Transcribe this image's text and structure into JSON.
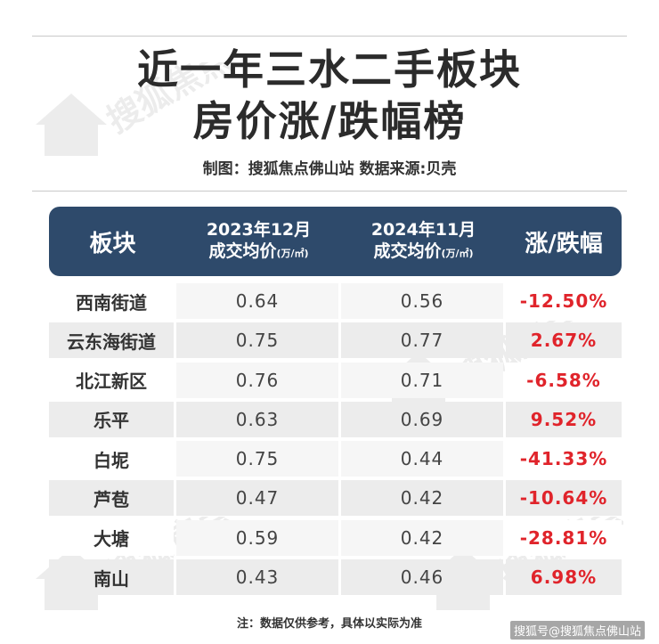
{
  "header": {
    "title_line1": "近一年三水二手板块",
    "title_line2": "房价涨/跌幅榜",
    "credit": "制图：搜狐焦点佛山站  数据来源:贝壳"
  },
  "table": {
    "columns": {
      "c1": "板块",
      "c2_line1": "2023年12月",
      "c2_line2": "成交均价",
      "c3_line1": "2024年11月",
      "c3_line2": "成交均价",
      "unit": "(万/㎡)",
      "c4": "涨/跌幅"
    },
    "rows": [
      {
        "name": "西南街道",
        "price_2023_12": "0.64",
        "price_2024_11": "0.56",
        "change": "-12.50%"
      },
      {
        "name": "云东海街道",
        "price_2023_12": "0.75",
        "price_2024_11": "0.77",
        "change": "2.67%"
      },
      {
        "name": "北江新区",
        "price_2023_12": "0.76",
        "price_2024_11": "0.71",
        "change": "-6.58%"
      },
      {
        "name": "乐平",
        "price_2023_12": "0.63",
        "price_2024_11": "0.69",
        "change": "9.52%"
      },
      {
        "name": "白坭",
        "price_2023_12": "0.75",
        "price_2024_11": "0.44",
        "change": "-41.33%"
      },
      {
        "name": "芦苞",
        "price_2023_12": "0.47",
        "price_2024_11": "0.42",
        "change": "-10.64%"
      },
      {
        "name": "大塘",
        "price_2023_12": "0.59",
        "price_2024_11": "0.42",
        "change": "-28.81%"
      },
      {
        "name": "南山",
        "price_2023_12": "0.43",
        "price_2024_11": "0.46",
        "change": "6.98%"
      }
    ]
  },
  "footer": {
    "note": "注：数据仅供参考，具体以实际为准",
    "source_label": "搜狐号@搜狐焦点佛山站"
  },
  "watermark": {
    "text": "搜狐焦点",
    "sub": "让买房更简单"
  },
  "colors": {
    "header_bg": "#2e4a6b",
    "change_text": "#e0242b",
    "row_alt": "#ececec"
  }
}
